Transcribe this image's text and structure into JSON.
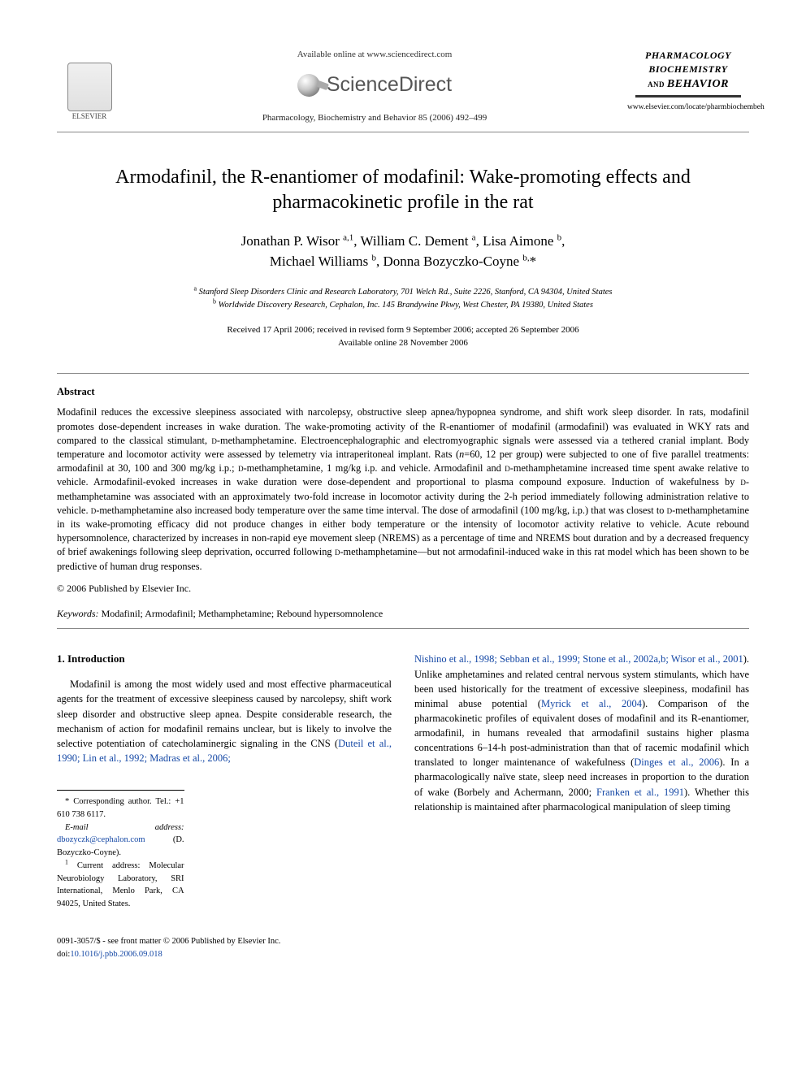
{
  "header": {
    "publisher_name": "ELSEVIER",
    "available_text": "Available online at www.sciencedirect.com",
    "sciencedirect": "ScienceDirect",
    "journal_ref": "Pharmacology, Biochemistry and Behavior 85 (2006) 492–499",
    "journal_name_l1": "PHARMACOLOGY",
    "journal_name_l2": "BIOCHEMISTRY",
    "journal_name_l3_prefix": "AND ",
    "journal_name_l3": "BEHAVIOR",
    "journal_url": "www.elsevier.com/locate/pharmbiochembeh"
  },
  "title": "Armodafinil, the R-enantiomer of modafinil: Wake-promoting effects and pharmacokinetic profile in the rat",
  "authors_line1": "Jonathan P. Wisor a,1, William C. Dement a, Lisa Aimone b,",
  "authors_line2": "Michael Williams b, Donna Bozyczko-Coyne b,*",
  "authors": [
    {
      "name": "Jonathan P. Wisor",
      "marks": "a,1"
    },
    {
      "name": "William C. Dement",
      "marks": "a"
    },
    {
      "name": "Lisa Aimone",
      "marks": "b"
    },
    {
      "name": "Michael Williams",
      "marks": "b"
    },
    {
      "name": "Donna Bozyczko-Coyne",
      "marks": "b,*"
    }
  ],
  "affiliations": {
    "a": "Stanford Sleep Disorders Clinic and Research Laboratory, 701 Welch Rd., Suite 2226, Stanford, CA 94304, United States",
    "b": "Worldwide Discovery Research, Cephalon, Inc. 145 Brandywine Pkwy, West Chester, PA 19380, United States"
  },
  "dates": {
    "received_line": "Received 17 April 2006; received in revised form 9 September 2006; accepted 26 September 2006",
    "online_line": "Available online 28 November 2006"
  },
  "abstract": {
    "heading": "Abstract",
    "body": "Modafinil reduces the excessive sleepiness associated with narcolepsy, obstructive sleep apnea/hypopnea syndrome, and shift work sleep disorder. In rats, modafinil promotes dose-dependent increases in wake duration. The wake-promoting activity of the R-enantiomer of modafinil (armodafinil) was evaluated in WKY rats and compared to the classical stimulant, D-methamphetamine. Electroencephalographic and electromyographic signals were assessed via a tethered cranial implant. Body temperature and locomotor activity were assessed by telemetry via intraperitoneal implant. Rats (n=60, 12 per group) were subjected to one of five parallel treatments: armodafinil at 30, 100 and 300 mg/kg i.p.; D-methamphetamine, 1 mg/kg i.p. and vehicle. Armodafinil and D-methamphetamine increased time spent awake relative to vehicle. Armodafinil-evoked increases in wake duration were dose-dependent and proportional to plasma compound exposure. Induction of wakefulness by D-methamphetamine was associated with an approximately two-fold increase in locomotor activity during the 2-h period immediately following administration relative to vehicle. D-methamphetamine also increased body temperature over the same time interval. The dose of armodafinil (100 mg/kg, i.p.) that was closest to D-methamphetamine in its wake-promoting efficacy did not produce changes in either body temperature or the intensity of locomotor activity relative to vehicle. Acute rebound hypersomnolence, characterized by increases in non-rapid eye movement sleep (NREMS) as a percentage of time and NREMS bout duration and by a decreased frequency of brief awakenings following sleep deprivation, occurred following D-methamphetamine—but not armodafinil-induced wake in this rat model which has been shown to be predictive of human drug responses.",
    "copyright": "© 2006 Published by Elsevier Inc."
  },
  "keywords": {
    "label": "Keywords:",
    "text": " Modafinil; Armodafinil; Methamphetamine; Rebound hypersomnolence"
  },
  "intro": {
    "heading": "1. Introduction",
    "col1_plain": "Modafinil is among the most widely used and most effective pharmaceutical agents for the treatment of excessive sleepiness caused by narcolepsy, shift work sleep disorder and obstructive sleep apnea. Despite considerable research, the mechanism of action for modafinil remains unclear, but is likely to involve the selective potentiation of catecholaminergic signaling in the CNS (",
    "col1_link": "Duteil et al., 1990; Lin et al., 1992; Madras et al., 2006;",
    "col2_link1": "Nishino et al., 1998; Sebban et al., 1999; Stone et al., 2002a,b; Wisor et al., 2001",
    "col2_mid1": "). Unlike amphetamines and related central nervous system stimulants, which have been used historically for the treatment of excessive sleepiness, modafinil has minimal abuse potential (",
    "col2_link2": "Myrick et al., 2004",
    "col2_mid2": "). Comparison of the pharmacokinetic profiles of equivalent doses of modafinil and its R-enantiomer, armodafinil, in humans revealed that armodafinil sustains higher plasma concentrations 6–14-h post-administration than that of racemic modafinil which translated to longer maintenance of wakefulness (",
    "col2_link3": "Dinges et al., 2006",
    "col2_mid3": "). In a pharmacologically naïve state, sleep need increases in proportion to the duration of wake (Borbely and Achermann, 2000; ",
    "col2_link4": "Franken et al., 1991",
    "col2_tail": "). Whether this relationship is maintained after pharmacological manipulation of sleep timing"
  },
  "footnotes": {
    "corr": "* Corresponding author. Tel.: +1 610 738 6117.",
    "email_label": "E-mail address: ",
    "email": "dbozyczk@cephalon.com",
    "email_tail": " (D. Bozyczko-Coyne).",
    "note1": "1 Current address: Molecular Neurobiology Laboratory, SRI International, Menlo Park, CA 94025, United States."
  },
  "footer": {
    "line1": "0091-3057/$ - see front matter © 2006 Published by Elsevier Inc.",
    "doi_label": "doi:",
    "doi": "10.1016/j.pbb.2006.09.018"
  },
  "colors": {
    "link": "#1548a5",
    "rule": "#888888",
    "text": "#000000",
    "background": "#ffffff"
  }
}
